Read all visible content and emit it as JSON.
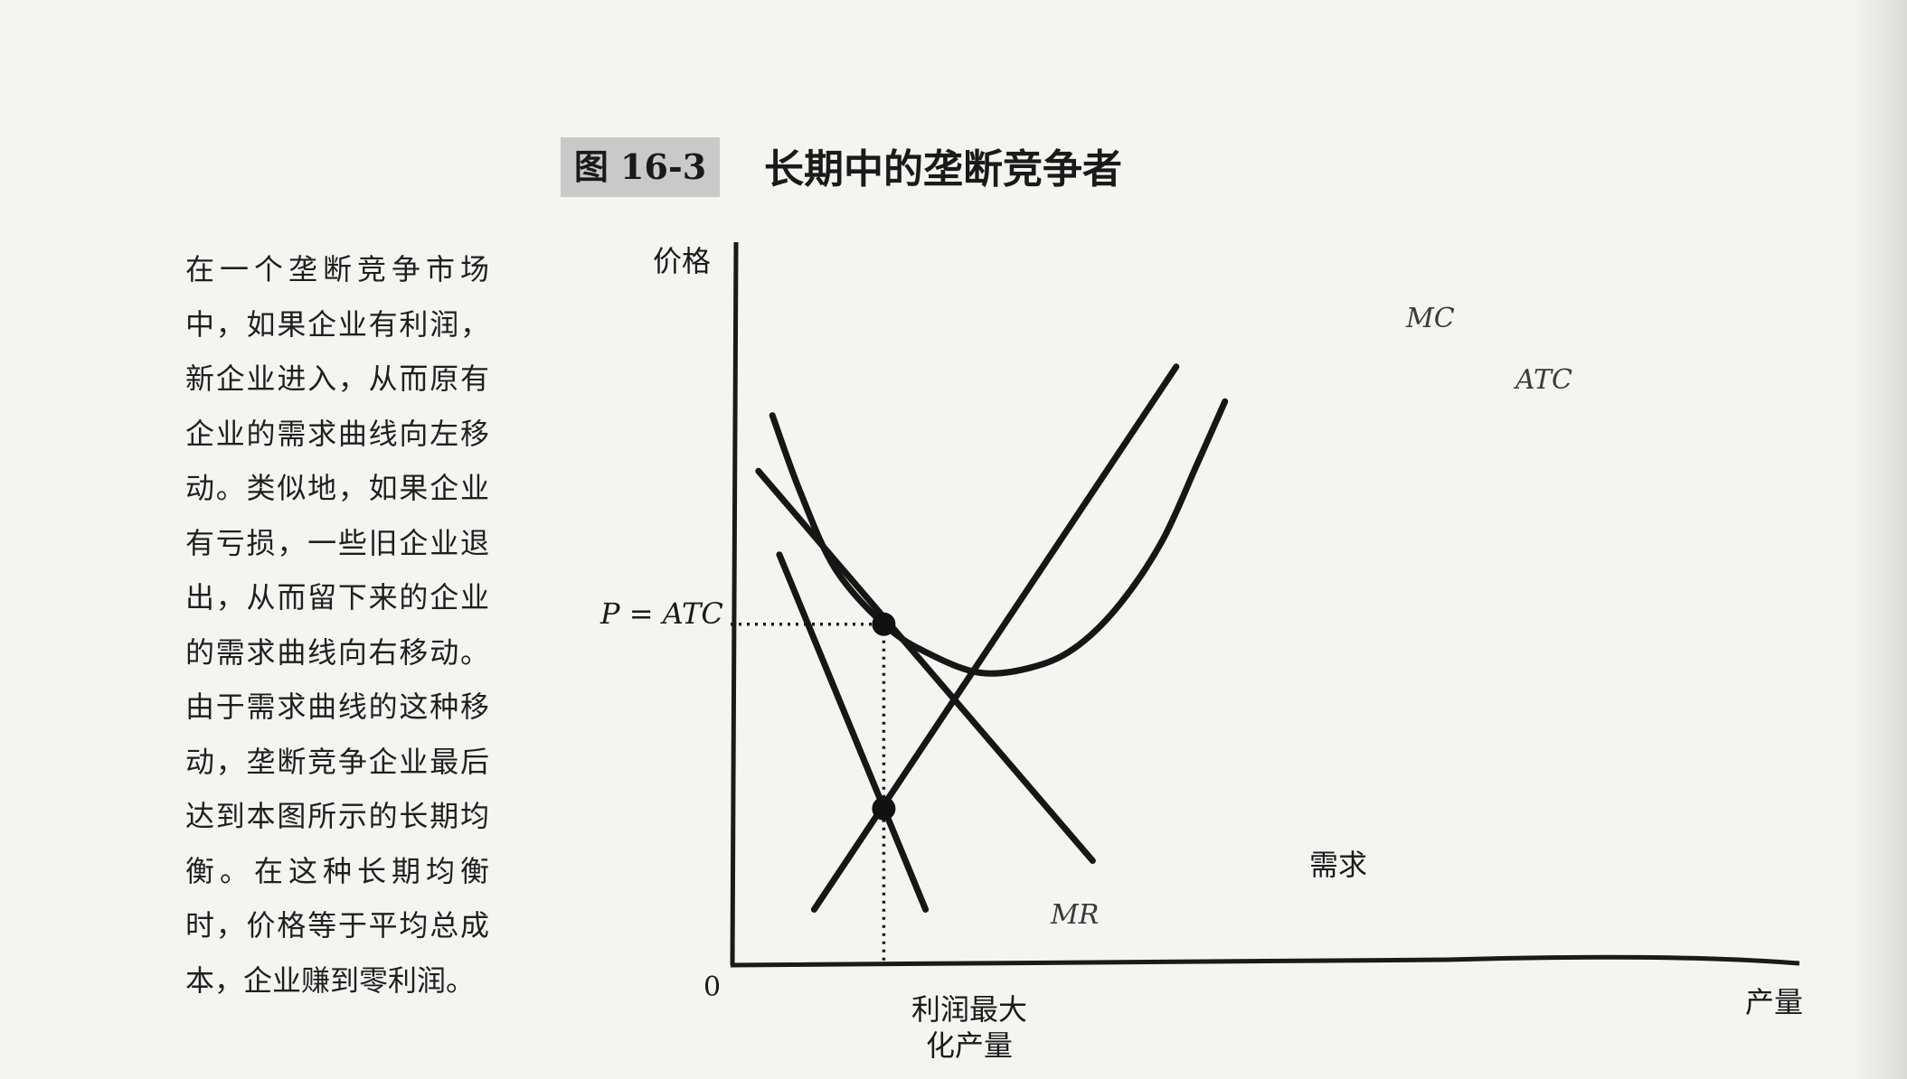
{
  "figure": {
    "number_label": "图 16-3",
    "title": "长期中的垄断竞争者"
  },
  "caption": "在一个垄断竞争市场中，如果企业有利润，新企业进入，从而原有企业的需求曲线向左移动。类似地，如果企业有亏损，一些旧企业退出，从而留下来的企业的需求曲线向右移动。由于需求曲线的这种移动，垄断竞争企业最后达到本图所示的长期均衡。在这种长期均衡时，价格等于平均总成本，企业赚到零利润。",
  "chart_data": {
    "type": "line",
    "ylabel": "价格",
    "xlabel": "产量",
    "origin_label": "0",
    "xlim": [
      0,
      100
    ],
    "ylim": [
      0,
      100
    ],
    "series": [
      {
        "name": "MC",
        "label": "MC",
        "points": [
          [
            12,
            8
          ],
          [
            64,
            86
          ]
        ]
      },
      {
        "name": "ATC",
        "label": "ATC",
        "points": [
          [
            6,
            79
          ],
          [
            10,
            68
          ],
          [
            15,
            57
          ],
          [
            22,
            49
          ],
          [
            28,
            45
          ],
          [
            36,
            42
          ],
          [
            44,
            43
          ],
          [
            50,
            46
          ],
          [
            56,
            52
          ],
          [
            62,
            61
          ],
          [
            67,
            72
          ],
          [
            71,
            81
          ]
        ]
      },
      {
        "name": "需求",
        "label": "需求",
        "points": [
          [
            4,
            71
          ],
          [
            52,
            15
          ]
        ]
      },
      {
        "name": "MR",
        "label": "MR",
        "points": [
          [
            7,
            59
          ],
          [
            28,
            8
          ]
        ]
      }
    ],
    "annotations": {
      "price_level_label": "P = ATC",
      "price_level": 49,
      "quantity_label_line1": "利润最大",
      "quantity_label_line2": "化产量",
      "quantity_level": 22,
      "mc_mr_intersection": [
        22,
        22.5
      ]
    }
  }
}
